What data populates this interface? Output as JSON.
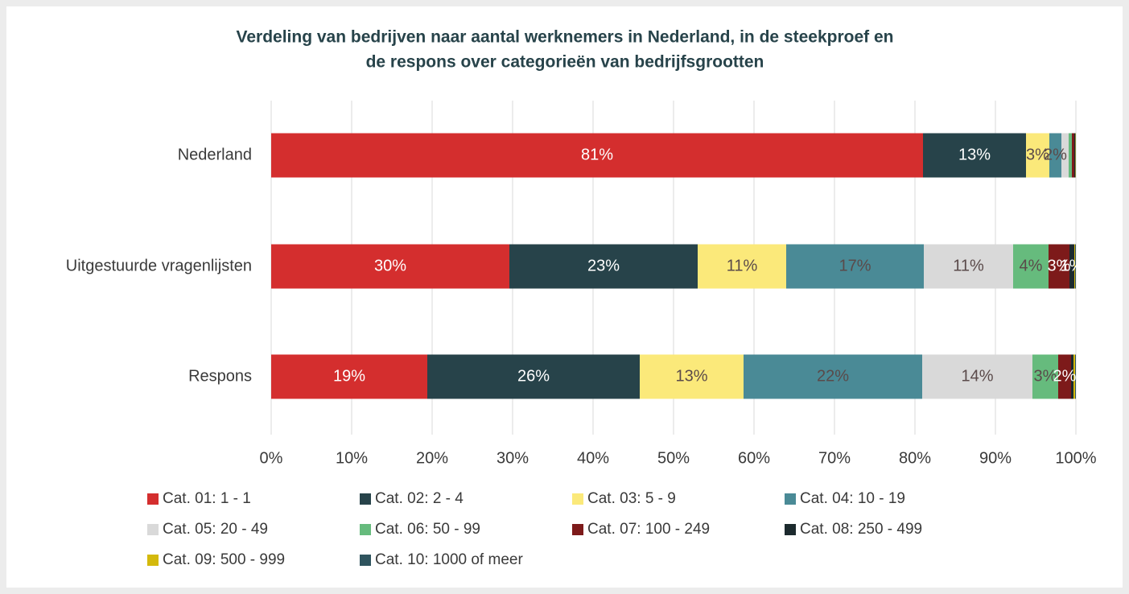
{
  "chart_data": {
    "type": "stacked-barh",
    "title": "Verdeling van bedrijven naar aantal werknemers in Nederland, in de steekproef en",
    "subtitle": "de respons over categorieën van bedrijfsgrootten",
    "categories": [
      "Nederland",
      "Uitgestuurde vragenlijsten",
      "Respons"
    ],
    "xlim": [
      0,
      100
    ],
    "xticks": [
      {
        "value": 0,
        "label": "0%"
      },
      {
        "value": 10,
        "label": "10%"
      },
      {
        "value": 20,
        "label": "20%"
      },
      {
        "value": 30,
        "label": "30%"
      },
      {
        "value": 40,
        "label": "40%"
      },
      {
        "value": 50,
        "label": "50%"
      },
      {
        "value": 60,
        "label": "60%"
      },
      {
        "value": 70,
        "label": "70%"
      },
      {
        "value": 80,
        "label": "80%"
      },
      {
        "value": 90,
        "label": "90%"
      },
      {
        "value": 100,
        "label": "100%"
      }
    ],
    "grid": true,
    "legend": "bottom",
    "series": [
      {
        "name": "Cat. 01: 1 - 1",
        "color": "#d42e2e",
        "values": [
          81.0,
          29.6,
          19.4
        ],
        "value_labels": [
          "81%",
          "30%",
          "19%"
        ]
      },
      {
        "name": "Cat. 02: 2 - 4",
        "color": "#27434a",
        "values": [
          12.8,
          23.4,
          26.4
        ],
        "value_labels": [
          "13%",
          "23%",
          "26%"
        ]
      },
      {
        "name": "Cat. 03: 5 - 9",
        "color": "#fbe97a",
        "values": [
          2.9,
          11.0,
          12.9
        ],
        "value_labels": [
          "3%",
          "11%",
          "13%"
        ]
      },
      {
        "name": "Cat. 04: 10 - 19",
        "color": "#4a8a96",
        "values": [
          1.5,
          17.1,
          22.2
        ],
        "value_labels": [
          "2%",
          "17%",
          "22%"
        ]
      },
      {
        "name": "Cat. 05: 20 - 49",
        "color": "#d9d9d9",
        "values": [
          0.9,
          11.1,
          13.7
        ],
        "value_labels": [
          null,
          "11%",
          "14%"
        ]
      },
      {
        "name": "Cat. 06: 50 - 99",
        "color": "#66bb7d",
        "values": [
          0.4,
          4.4,
          3.2
        ],
        "value_labels": [
          null,
          "4%",
          "3%"
        ]
      },
      {
        "name": "Cat. 07: 100 - 249",
        "color": "#7d1a1a",
        "values": [
          0.3,
          2.6,
          1.6
        ],
        "value_labels": [
          null,
          "3%",
          "2%"
        ]
      },
      {
        "name": "Cat. 08: 250 - 499",
        "color": "#1c2a2e",
        "values": [
          0.1,
          0.6,
          0.3
        ],
        "value_labels": [
          null,
          "1%",
          null
        ]
      },
      {
        "name": "Cat. 09: 500 - 999",
        "color": "#d4b90c",
        "values": [
          0.05,
          0.1,
          0.2
        ],
        "value_labels": [
          null,
          null,
          null
        ]
      },
      {
        "name": "Cat. 10: 1000 of meer",
        "color": "#2f545e",
        "values": [
          0.05,
          0.1,
          0.1
        ],
        "value_labels": [
          null,
          null,
          null
        ]
      }
    ]
  }
}
